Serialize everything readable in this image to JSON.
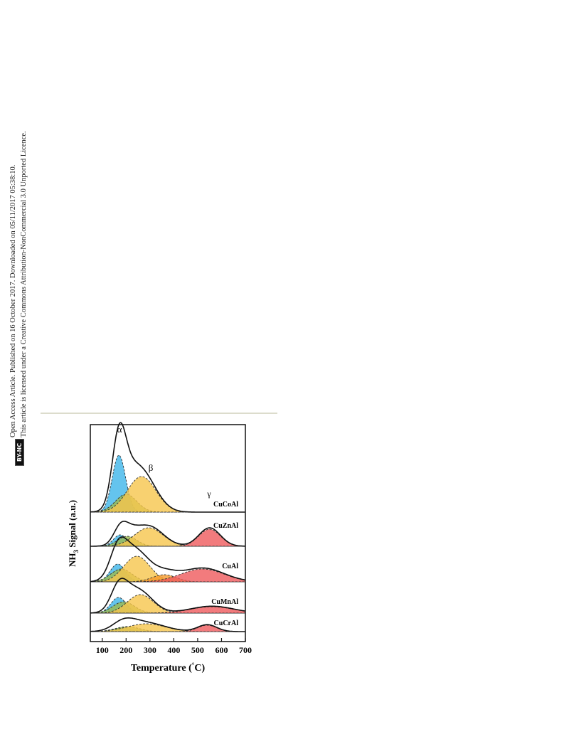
{
  "side_notice": {
    "line1": "Open Access Article. Published on 16 October 2017. Downloaded on 05/11/2017 05:38:10.",
    "line2": "This article is licensed under a Creative Commons Attribution-NonCommercial 3.0 Unported Licence.",
    "badge": "BY-NC"
  },
  "chart_data": {
    "type": "stacked-deconvolution",
    "x_label": [
      "Temperature (",
      "°",
      "C)"
    ],
    "y_label": [
      "NH",
      "3",
      " Signal (a.u.)"
    ],
    "annotations": [
      "α",
      "β",
      "γ"
    ],
    "xlim": [
      50,
      700
    ],
    "xticks": [
      100,
      200,
      300,
      400,
      500,
      600,
      700
    ],
    "samples": [
      {
        "name": "CuCoAl",
        "peaks": [
          {
            "color": "#3db5ea",
            "center": 170,
            "height": 80,
            "width": 28
          },
          {
            "color": "#9bb94c",
            "center": 200,
            "height": 25,
            "width": 45
          },
          {
            "color": "#f6c64c",
            "center": 265,
            "height": 50,
            "width": 60
          }
        ]
      },
      {
        "name": "CuZnAl",
        "peaks": [
          {
            "color": "#3db5ea",
            "center": 175,
            "height": 16,
            "width": 28
          },
          {
            "color": "#9bb94c",
            "center": 205,
            "height": 14,
            "width": 40
          },
          {
            "color": "#f6c64c",
            "center": 295,
            "height": 26,
            "width": 60
          },
          {
            "color": "#ef5a5c",
            "center": 550,
            "height": 24,
            "width": 45
          }
        ]
      },
      {
        "name": "CuAl",
        "peaks": [
          {
            "color": "#3db5ea",
            "center": 165,
            "height": 25,
            "width": 32
          },
          {
            "color": "#9bb94c",
            "center": 180,
            "height": 18,
            "width": 45
          },
          {
            "color": "#f6c64c",
            "center": 245,
            "height": 36,
            "width": 55
          },
          {
            "color": "#f59a2c",
            "center": 360,
            "height": 10,
            "width": 50
          },
          {
            "color": "#ef5a5c",
            "center": 520,
            "height": 18,
            "width": 90
          }
        ]
      },
      {
        "name": "CuMnAl",
        "peaks": [
          {
            "color": "#3db5ea",
            "center": 168,
            "height": 22,
            "width": 32
          },
          {
            "color": "#9bb94c",
            "center": 190,
            "height": 16,
            "width": 45
          },
          {
            "color": "#f6c64c",
            "center": 260,
            "height": 26,
            "width": 55
          },
          {
            "color": "#ef5a5c",
            "center": 560,
            "height": 9,
            "width": 90
          }
        ]
      },
      {
        "name": "CuCrAl",
        "peaks": [
          {
            "color": "#3db5ea",
            "center": 180,
            "height": 5,
            "width": 40
          },
          {
            "color": "#9bb94c",
            "center": 205,
            "height": 7,
            "width": 50
          },
          {
            "color": "#f6c64c",
            "center": 285,
            "height": 11,
            "width": 80
          },
          {
            "color": "#ef5a5c",
            "center": 540,
            "height": 9,
            "width": 40
          }
        ]
      }
    ]
  }
}
